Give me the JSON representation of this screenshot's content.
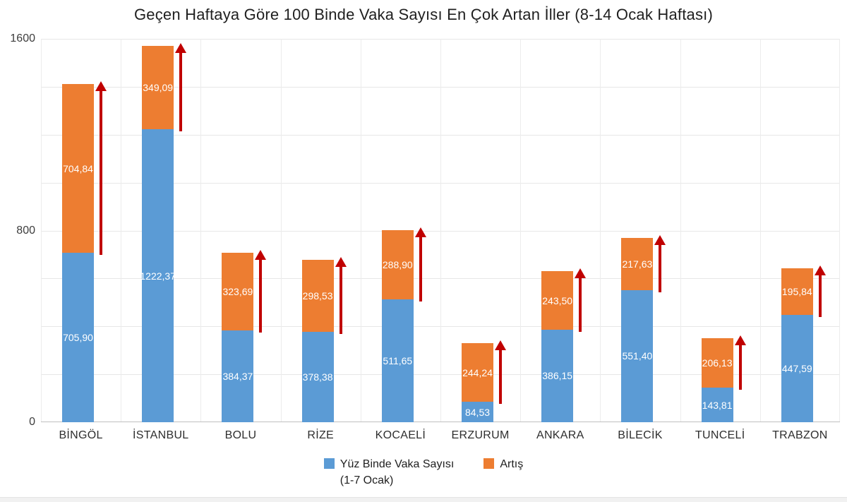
{
  "title": "Geçen Haftaya Göre 100 Binde Vaka Sayısı En Çok Artan İller (8-14 Ocak Haftası)",
  "colors": {
    "blue": "#5B9BD5",
    "orange": "#ED7D31",
    "arrow_red": "#C00000",
    "gridline": "#E7E7E7",
    "axis_line": "#C0C0C0",
    "tick_text": "#3D3D3D",
    "bar_label_text": "#FFFFFF"
  },
  "y_axis": {
    "tick_labels": [
      "0",
      "800",
      "1600"
    ],
    "tick_values": [
      0,
      800,
      1600
    ],
    "min": 0,
    "max": 1600,
    "grid_interval": 200
  },
  "legend": {
    "items": [
      {
        "label": "Yüz Binde Vaka Sayısı",
        "sublabel": "(1-7 Ocak)",
        "color": "#5B9BD5"
      },
      {
        "label": "Artış",
        "sublabel": "",
        "color": "#ED7D31"
      }
    ]
  },
  "chart_data": {
    "type": "bar",
    "stacked": true,
    "title": "Geçen Haftaya Göre 100 Binde Vaka Sayısı En Çok Artan İller (8-14 Ocak Haftası)",
    "categories": [
      "BİNGÖL",
      "İSTANBUL",
      "BOLU",
      "RİZE",
      "KOCAELİ",
      "ERZURUM",
      "ANKARA",
      "BİLECİK",
      "TUNCELİ",
      "TRABZON"
    ],
    "series": [
      {
        "name": "Yüz Binde Vaka Sayısı (1-7 Ocak)",
        "color": "#5B9BD5",
        "values": [
          705.9,
          1222.37,
          384.37,
          378.38,
          511.65,
          84.53,
          386.15,
          551.4,
          143.81,
          447.59
        ],
        "labels": [
          "705,90",
          "1222,37",
          "384,37",
          "378,38",
          "511,65",
          "84,53",
          "386,15",
          "551,40",
          "143,81",
          "447,59"
        ]
      },
      {
        "name": "Artış",
        "color": "#ED7D31",
        "values": [
          704.84,
          349.09,
          323.69,
          298.53,
          288.9,
          244.24,
          243.5,
          217.63,
          206.13,
          195.84
        ],
        "labels": [
          "704,84",
          "349,09",
          "323,69",
          "298,53",
          "288,90",
          "244,24",
          "243,50",
          "217,63",
          "206,13",
          "195,84"
        ]
      }
    ],
    "ylim": [
      0,
      1600
    ],
    "xlabel": "",
    "ylabel": "",
    "grid": true,
    "legend_position": "bottom",
    "annotations": "dark red upward arrow beside each bar spanning the Artış (orange) segment"
  }
}
